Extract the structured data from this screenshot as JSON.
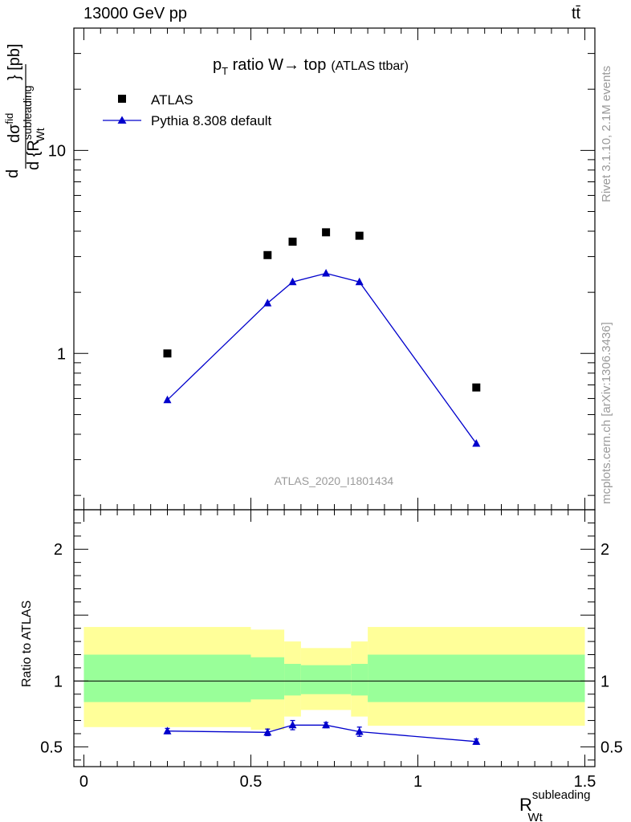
{
  "header": {
    "left": "13000 GeV pp",
    "right": "tt̄"
  },
  "side": {
    "rivet": "Rivet 3.1.10,  2.1M events",
    "mcplots": "mcplots.cern.ch [arXiv:1306.3436]"
  },
  "chart_data": [
    {
      "type": "scatter",
      "title_main": "p",
      "title_sub": "T",
      "title_rest": " ratio W→ top",
      "title_extra": "(ATLAS ttbar)",
      "ylabel_parts": {
        "d": "d",
        "num": "dσ",
        "num_sup": "fid",
        "den": "d {R",
        "den_sup": "subleading",
        "den_sub": "Wt",
        "unit": "} [pb]"
      },
      "yscale": "log",
      "ylim": [
        0.17,
        40
      ],
      "xlim": [
        -0.03,
        1.53
      ],
      "yticks": [
        {
          "v": 1,
          "label": "1"
        },
        {
          "v": 10,
          "label": "10"
        }
      ],
      "analysis": "ATLAS_2020_I1801434",
      "legend_placement": "top-left",
      "series": [
        {
          "name": "ATLAS",
          "marker": "square",
          "color": "#000000",
          "x": [
            0.25,
            0.55,
            0.625,
            0.725,
            0.825,
            1.175
          ],
          "y": [
            1.0,
            3.05,
            3.55,
            3.95,
            3.8,
            0.68
          ]
        },
        {
          "name": "Pythia 8.308 default",
          "marker": "triangle",
          "color": "#0000cc",
          "x": [
            0.25,
            0.55,
            0.625,
            0.725,
            0.825,
            1.175
          ],
          "y": [
            0.59,
            1.77,
            2.25,
            2.48,
            2.25,
            0.36
          ]
        }
      ]
    },
    {
      "type": "line",
      "ylabel": "Ratio to ATLAS",
      "xlabel_main": "R",
      "xlabel_sup": "subleading",
      "xlabel_sub": "Wt",
      "xlim": [
        -0.03,
        1.53
      ],
      "ylim": [
        0.35,
        2.3
      ],
      "xticks": [
        {
          "v": 0,
          "label": "0"
        },
        {
          "v": 0.5,
          "label": "0.5"
        },
        {
          "v": 1,
          "label": "1"
        },
        {
          "v": 1.5,
          "label": "1.5"
        }
      ],
      "yticks": [
        {
          "v": 0.5,
          "label": "0.5"
        },
        {
          "v": 1,
          "label": "1"
        },
        {
          "v": 2,
          "label": "2"
        }
      ],
      "bands": {
        "edges": [
          0,
          0.5,
          0.6,
          0.65,
          0.8,
          0.85,
          1.5
        ],
        "yellow": [
          [
            0.65,
            1.41
          ],
          [
            0.63,
            1.39
          ],
          [
            0.73,
            1.3
          ],
          [
            0.78,
            1.25
          ],
          [
            0.73,
            1.3
          ],
          [
            0.66,
            1.41
          ]
        ],
        "green": [
          [
            0.84,
            1.2
          ],
          [
            0.86,
            1.18
          ],
          [
            0.89,
            1.13
          ],
          [
            0.9,
            1.12
          ],
          [
            0.89,
            1.13
          ],
          [
            0.84,
            1.2
          ]
        ]
      },
      "series": [
        {
          "name": "Pythia 8.308 default",
          "color": "#0000cc",
          "x": [
            0.25,
            0.55,
            0.625,
            0.725,
            0.825,
            1.175
          ],
          "y": [
            0.62,
            0.61,
            0.665,
            0.665,
            0.615,
            0.54
          ],
          "err": [
            0.02,
            0.025,
            0.035,
            0.02,
            0.035,
            0.02
          ]
        }
      ]
    }
  ]
}
